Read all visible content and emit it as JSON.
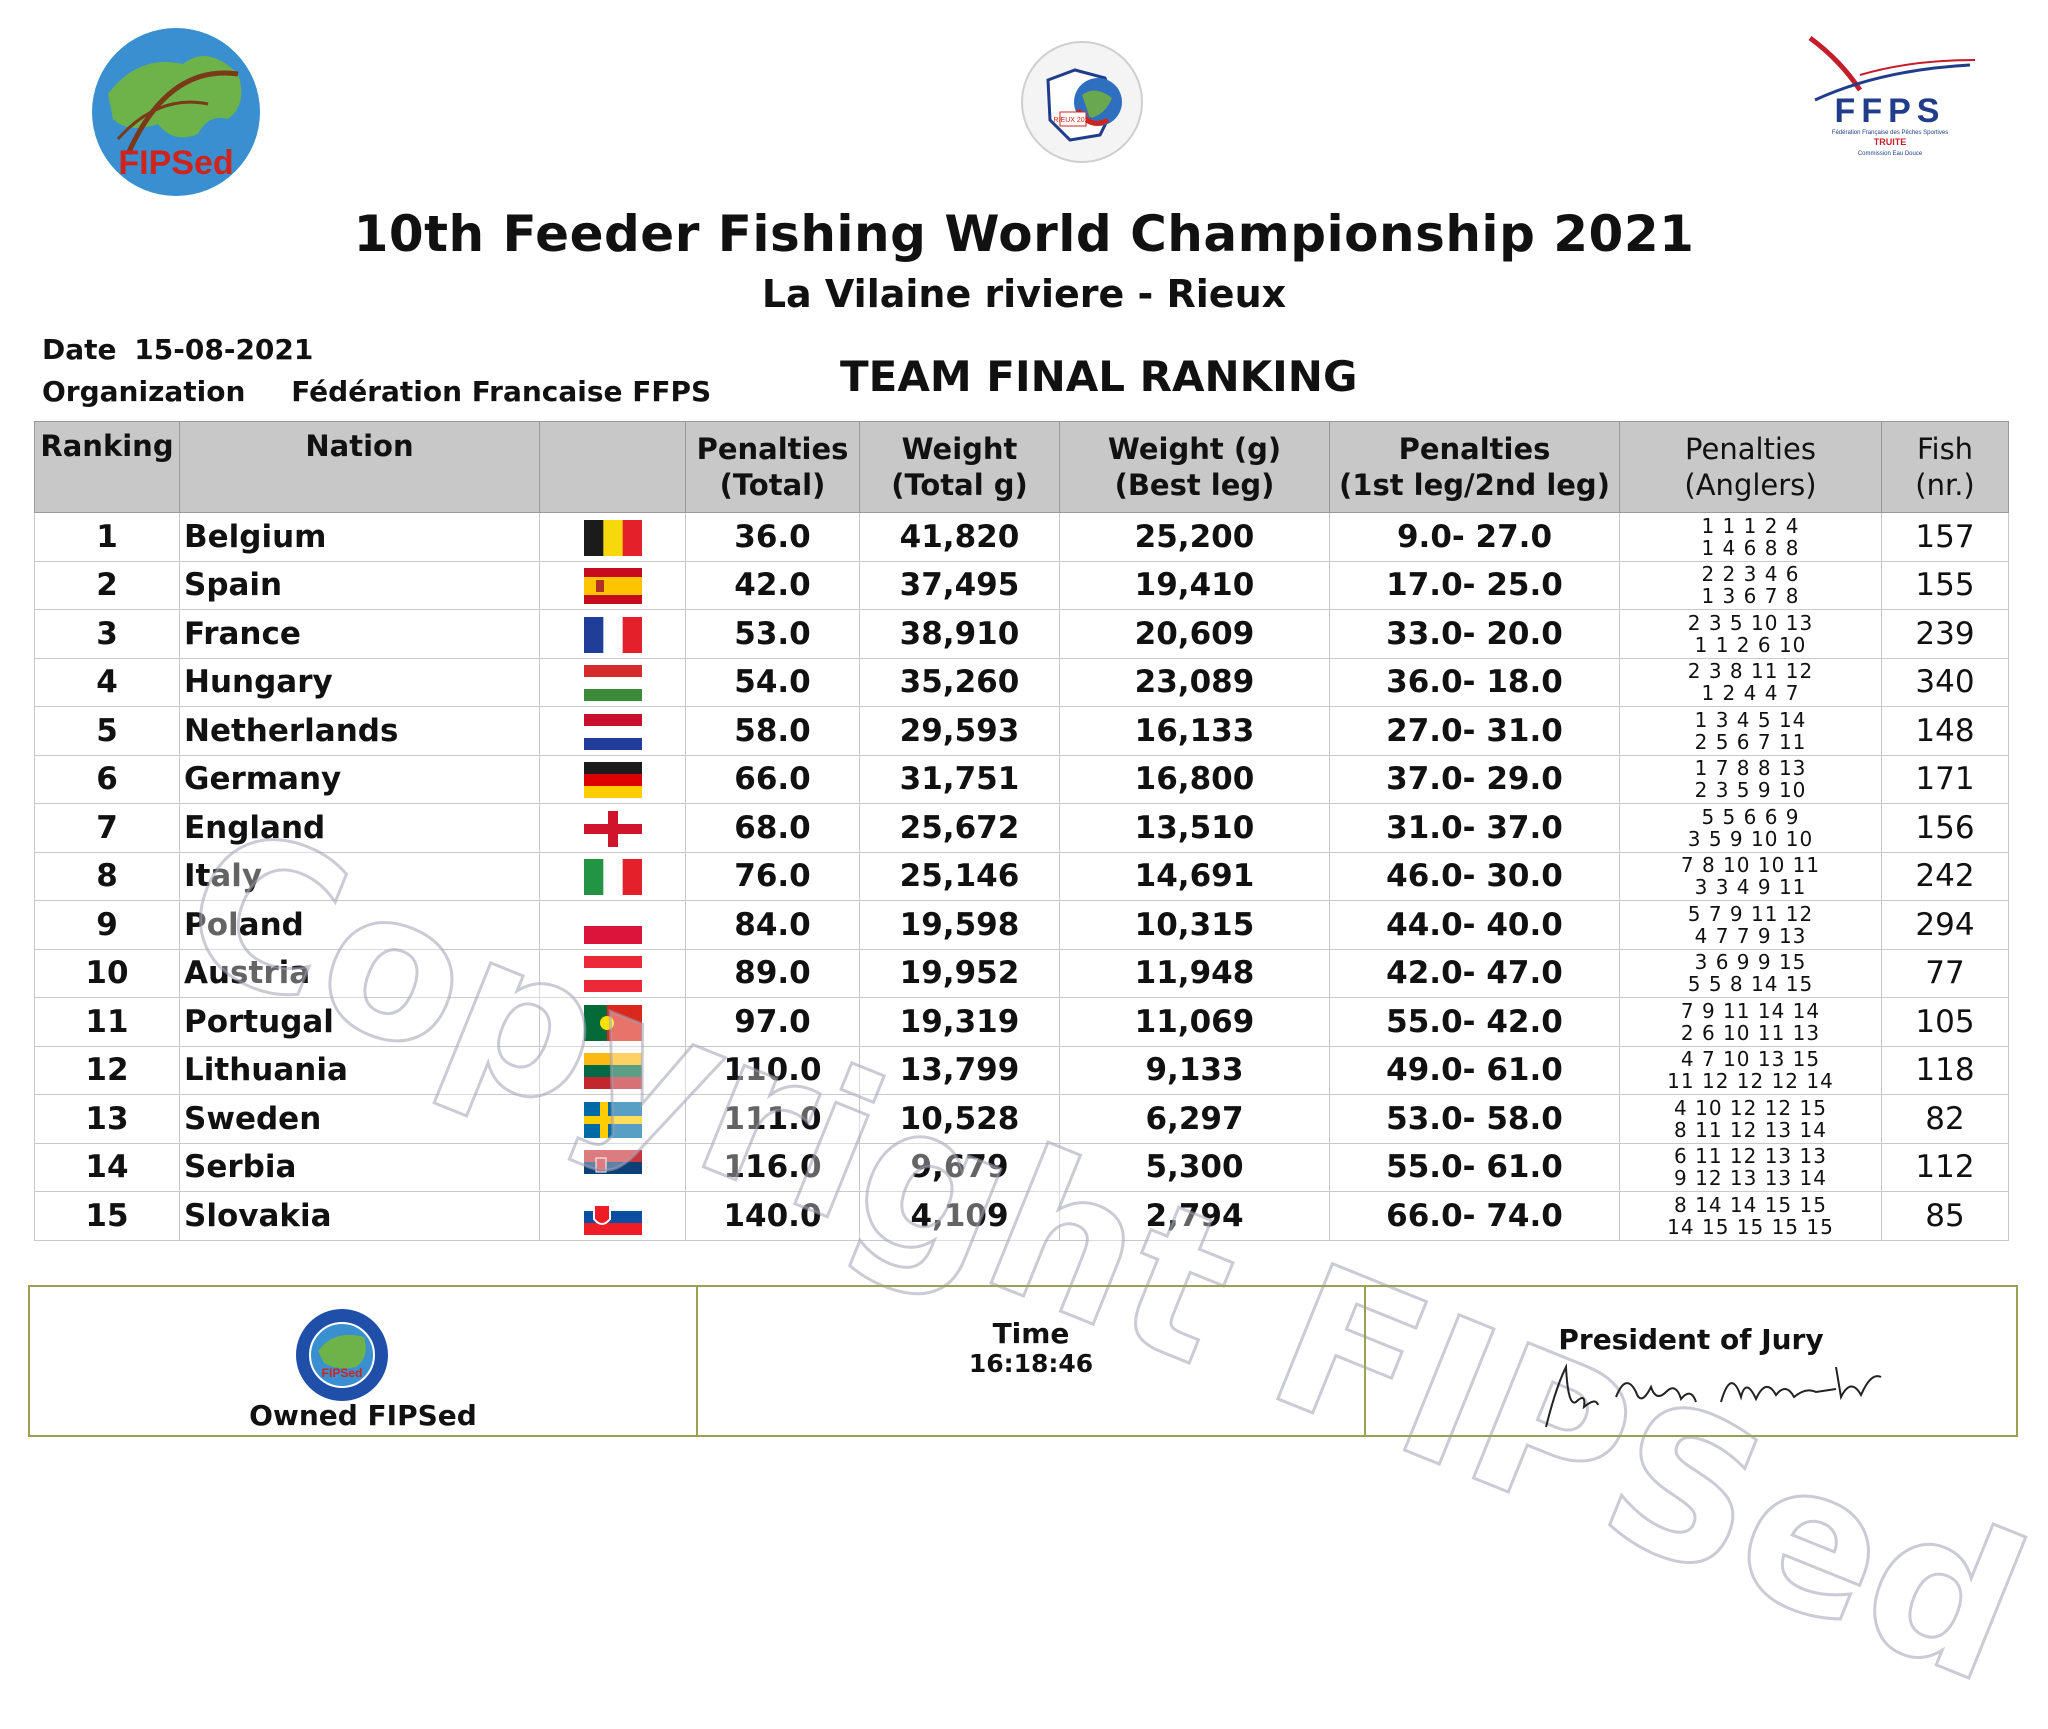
{
  "logos": {
    "left_text": "FIPSed",
    "center_text": "RIEUX 2021",
    "right_text": "FFPS",
    "right_sub1": "Fédération Française des Pêches Sportives",
    "right_sub2": "TRUITE",
    "right_sub3": "Commission Eau Douce"
  },
  "header": {
    "title": "10th  Feeder Fishing World Championship 2021",
    "subtitle": "La Vilaine riviere - Rieux",
    "heading": "TEAM FINAL RANKING",
    "date_label": "Date",
    "date_value": "15-08-2021",
    "org_label": "Organization",
    "org_value": "Fédération Francaise FFPS"
  },
  "columns": {
    "ranking": "Ranking",
    "nation": "Nation",
    "flag": "",
    "pen_total_1": "Penalties",
    "pen_total_2": "(Total)",
    "weight_total_1": "Weight",
    "weight_total_2": "(Total g)",
    "weight_best_1": "Weight (g)",
    "weight_best_2": "(Best leg)",
    "pen_legs_1": "Penalties",
    "pen_legs_2": "(1st leg/2nd leg)",
    "pen_anglers_1": "Penalties",
    "pen_anglers_2": "(Anglers)",
    "fish_1": "Fish",
    "fish_2": "(nr.)"
  },
  "rows": [
    {
      "rank": "1",
      "nation": "Belgium",
      "flag": "belgium",
      "pen_total": "36.0",
      "weight_total": "41,820",
      "weight_best": "25,200",
      "pen_legs": "9.0- 27.0",
      "anglers1": "1  1  1  2  4",
      "anglers2": "1  4  6  8  8",
      "fish": "157"
    },
    {
      "rank": "2",
      "nation": "Spain",
      "flag": "spain",
      "pen_total": "42.0",
      "weight_total": "37,495",
      "weight_best": "19,410",
      "pen_legs": "17.0- 25.0",
      "anglers1": "2  2  3  4  6",
      "anglers2": "1  3  6  7  8",
      "fish": "155"
    },
    {
      "rank": "3",
      "nation": "France",
      "flag": "france",
      "pen_total": "53.0",
      "weight_total": "38,910",
      "weight_best": "20,609",
      "pen_legs": "33.0- 20.0",
      "anglers1": "2  3  5 10 13",
      "anglers2": "1  1  2  6 10",
      "fish": "239"
    },
    {
      "rank": "4",
      "nation": "Hungary",
      "flag": "hungary",
      "pen_total": "54.0",
      "weight_total": "35,260",
      "weight_best": "23,089",
      "pen_legs": "36.0- 18.0",
      "anglers1": "2  3  8 11 12",
      "anglers2": "1  2  4  4  7",
      "fish": "340"
    },
    {
      "rank": "5",
      "nation": "Netherlands",
      "flag": "netherlands",
      "pen_total": "58.0",
      "weight_total": "29,593",
      "weight_best": "16,133",
      "pen_legs": "27.0- 31.0",
      "anglers1": "1  3  4  5 14",
      "anglers2": "2  5  6  7 11",
      "fish": "148"
    },
    {
      "rank": "6",
      "nation": "Germany",
      "flag": "germany",
      "pen_total": "66.0",
      "weight_total": "31,751",
      "weight_best": "16,800",
      "pen_legs": "37.0- 29.0",
      "anglers1": "1  7  8  8 13",
      "anglers2": "2  3  5  9 10",
      "fish": "171"
    },
    {
      "rank": "7",
      "nation": "England",
      "flag": "england",
      "pen_total": "68.0",
      "weight_total": "25,672",
      "weight_best": "13,510",
      "pen_legs": "31.0- 37.0",
      "anglers1": "5  5  6  6  9",
      "anglers2": "3  5  9 10 10",
      "fish": "156"
    },
    {
      "rank": "8",
      "nation": "Italy",
      "flag": "italy",
      "pen_total": "76.0",
      "weight_total": "25,146",
      "weight_best": "14,691",
      "pen_legs": "46.0- 30.0",
      "anglers1": "7  8 10 10 11",
      "anglers2": "3  3  4  9 11",
      "fish": "242"
    },
    {
      "rank": "9",
      "nation": "Poland",
      "flag": "poland",
      "pen_total": "84.0",
      "weight_total": "19,598",
      "weight_best": "10,315",
      "pen_legs": "44.0- 40.0",
      "anglers1": "5  7  9 11 12",
      "anglers2": "4  7  7  9 13",
      "fish": "294"
    },
    {
      "rank": "10",
      "nation": "Austria",
      "flag": "austria",
      "pen_total": "89.0",
      "weight_total": "19,952",
      "weight_best": "11,948",
      "pen_legs": "42.0- 47.0",
      "anglers1": "3  6  9  9 15",
      "anglers2": "5  5  8 14 15",
      "fish": "77"
    },
    {
      "rank": "11",
      "nation": "Portugal",
      "flag": "portugal",
      "pen_total": "97.0",
      "weight_total": "19,319",
      "weight_best": "11,069",
      "pen_legs": "55.0- 42.0",
      "anglers1": "7  9 11 14 14",
      "anglers2": "2  6 10 11 13",
      "fish": "105"
    },
    {
      "rank": "12",
      "nation": "Lithuania",
      "flag": "lithuania",
      "pen_total": "110.0",
      "weight_total": "13,799",
      "weight_best": "9,133",
      "pen_legs": "49.0- 61.0",
      "anglers1": "4  7 10 13 15",
      "anglers2": "11 12 12 12 14",
      "fish": "118"
    },
    {
      "rank": "13",
      "nation": "Sweden",
      "flag": "sweden",
      "pen_total": "111.0",
      "weight_total": "10,528",
      "weight_best": "6,297",
      "pen_legs": "53.0- 58.0",
      "anglers1": "4 10 12 12 15",
      "anglers2": "8 11 12 13 14",
      "fish": "82"
    },
    {
      "rank": "14",
      "nation": "Serbia",
      "flag": "serbia",
      "pen_total": "116.0",
      "weight_total": "9,679",
      "weight_best": "5,300",
      "pen_legs": "55.0- 61.0",
      "anglers1": "6 11 12 13 13",
      "anglers2": "9 12 13 13 14",
      "fish": "112"
    },
    {
      "rank": "15",
      "nation": "Slovakia",
      "flag": "slovakia",
      "pen_total": "140.0",
      "weight_total": "4,109",
      "weight_best": "2,794",
      "pen_legs": "66.0- 74.0",
      "anglers1": "8 14 14 15 15",
      "anglers2": "14 15 15 15 15",
      "fish": "85"
    }
  ],
  "watermark": "Copyright FIPSed",
  "footer": {
    "owned_label": "Owned FIPSed",
    "owned_logo_text": "FIPSed",
    "time_label": "Time",
    "time_value": "16:18:46",
    "jury_label": "President of Jury"
  },
  "colors": {
    "header_bg": "#c8c8c8",
    "footer_border": "#9aa055"
  }
}
